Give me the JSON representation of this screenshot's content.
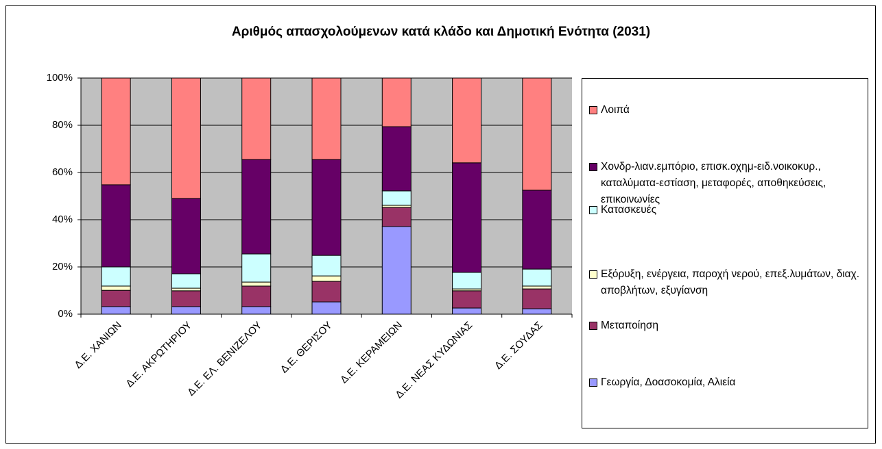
{
  "chart_data": {
    "type": "stacked_bar_percent",
    "title": "Αριθμός απασχολούμενων κατά κλάδο και Δημοτική Ενότητα (2031)",
    "categories": [
      "Δ.Ε. ΧΑΝΙΩΝ",
      "Δ.Ε. ΑΚΡΩΤΗΡΙΟΥ",
      "Δ.Ε. ΕΛ. ΒΕΝΙΖΕΛΟΥ",
      "Δ.Ε. ΘΕΡΙΣΟΥ",
      "Δ.Ε. ΚΕΡΑΜΕΙΩΝ",
      "Δ.Ε. ΝΕΑΣ ΚΥΔΩΝΙΑΣ",
      "Δ.Ε. ΣΟΥΔΑΣ"
    ],
    "series": [
      {
        "name": "Γεωργία, Δοασοκομία, Αλιεία",
        "color": "#9999ff",
        "values": [
          3.2,
          3.2,
          3.2,
          5.2,
          37.1,
          2.6,
          2.3
        ]
      },
      {
        "name": "Μεταποίηση",
        "color": "#993366",
        "values": [
          6.9,
          6.7,
          8.7,
          8.7,
          8.1,
          7.3,
          8.4
        ]
      },
      {
        "name": "Εξόρυξη, ενέργεια, παροχή νερού, επεξ.λυμάτων, διαχ. αποβλήτων, εξυγίανση",
        "color": "#ffffcc",
        "values": [
          1.8,
          1.1,
          1.7,
          2.3,
          0.9,
          0.8,
          1.2
        ]
      },
      {
        "name": "Κατασκευές",
        "color": "#ccffff",
        "values": [
          8.1,
          6.1,
          11.9,
          8.7,
          6.1,
          7.0,
          7.2
        ]
      },
      {
        "name": "Χονδρ-λιαν.εμπόριο, επισκ.οχημ-ειδ.νοικοκυρ., καταλύματα-εστίαση, μεταφορές, αποθηκεύσεις, επικοινωνίες",
        "color": "#660066",
        "values": [
          34.8,
          31.9,
          40.0,
          40.6,
          27.2,
          46.4,
          33.4
        ]
      },
      {
        "name": "Λοιπά",
        "color": "#ff8080",
        "values": [
          45.2,
          51.0,
          34.5,
          34.5,
          20.6,
          35.9,
          47.5
        ]
      }
    ],
    "ylim": [
      0,
      100
    ],
    "yticks": [
      {
        "value": 0,
        "label": "0%"
      },
      {
        "value": 20,
        "label": "20%"
      },
      {
        "value": 40,
        "label": "40%"
      },
      {
        "value": 60,
        "label": "60%"
      },
      {
        "value": 80,
        "label": "80%"
      },
      {
        "value": 100,
        "label": "100%"
      }
    ],
    "grid": true,
    "plot_background": "#c0c0c0",
    "legend": "right"
  }
}
